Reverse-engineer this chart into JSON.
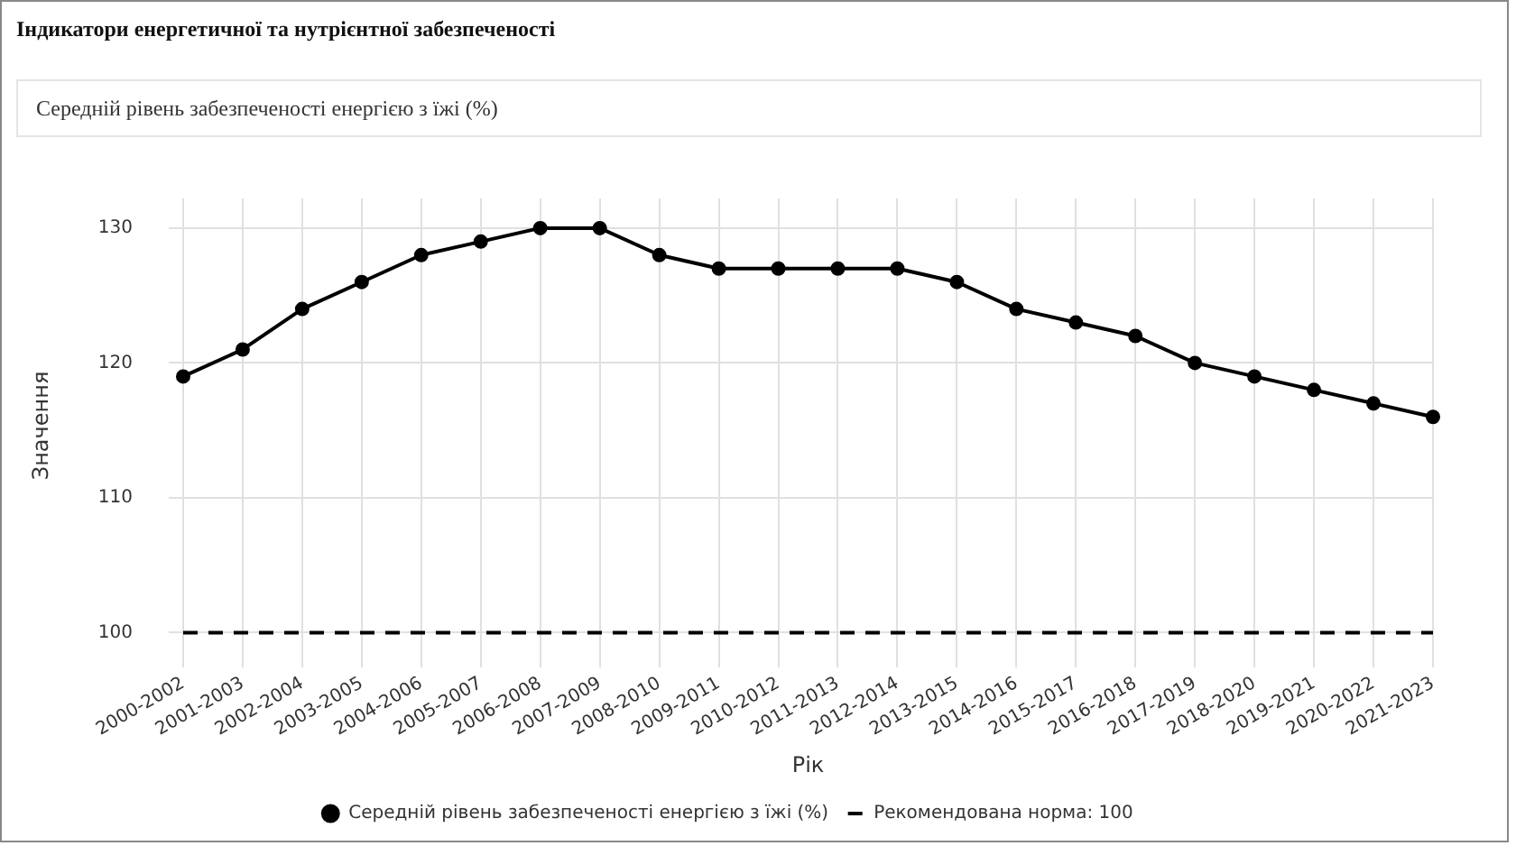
{
  "chart_data": {
    "type": "line",
    "title": "Індикатори енергетичної та нутрієнтної забезпеченості",
    "subtitle": "Середній рівень забезпеченості енергією з їжі (%)",
    "xlabel": "Рік",
    "ylabel": "Значення",
    "categories": [
      "2000-2002",
      "2001-2003",
      "2002-2004",
      "2003-2005",
      "2004-2006",
      "2005-2007",
      "2006-2008",
      "2007-2009",
      "2008-2010",
      "2009-2011",
      "2010-2012",
      "2011-2013",
      "2012-2014",
      "2013-2015",
      "2014-2016",
      "2015-2017",
      "2016-2018",
      "2017-2019",
      "2018-2020",
      "2019-2021",
      "2020-2022",
      "2021-2023"
    ],
    "series": [
      {
        "name": "Середній рівень забезпеченості енергією з їжі (%)",
        "color": "#000000",
        "marker": "circle",
        "line_style": "solid",
        "values": [
          119,
          121,
          124,
          126,
          128,
          129,
          130,
          130,
          128,
          127,
          127,
          127,
          127,
          126,
          124,
          123,
          122,
          120,
          119,
          118,
          117,
          116
        ]
      },
      {
        "name": "Рекомендована норма: 100",
        "color": "#000000",
        "marker": "none",
        "line_style": "dashed",
        "values": [
          100,
          100,
          100,
          100,
          100,
          100,
          100,
          100,
          100,
          100,
          100,
          100,
          100,
          100,
          100,
          100,
          100,
          100,
          100,
          100,
          100,
          100
        ]
      }
    ],
    "ylim": [
      98.5,
      132.2
    ],
    "yticks": [
      100,
      110,
      120,
      130
    ],
    "grid": true,
    "legend": "bottom"
  }
}
